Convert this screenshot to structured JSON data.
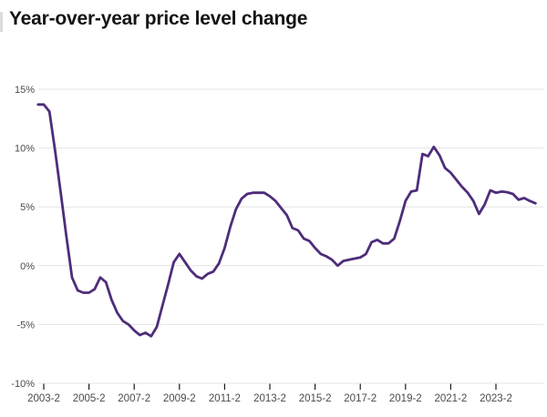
{
  "page": {
    "title": "Year-over-year price level change"
  },
  "chart_data": {
    "type": "line",
    "title": "Year-over-year price level change",
    "unit": "percent",
    "series_name": "Year-over-year price level change",
    "line_color": "#4e2d7a",
    "grid_color": "#e4e4e4",
    "axis_text_color": "#4b4b4b",
    "tick_mark_color": "#1a1a1a",
    "background_color": "#ffffff",
    "ylim": [
      -10,
      15
    ],
    "grid": "horizontal",
    "legend": "none",
    "y_tick_values": [
      15,
      10,
      5,
      0,
      -5,
      -10
    ],
    "y_tick_labels": [
      "15%",
      "10%",
      "5%",
      "0%",
      "-5%",
      "-10%"
    ],
    "x_tick_labels": [
      "2003-2",
      "2005-2",
      "2007-2",
      "2009-2",
      "2011-2",
      "2013-2",
      "2015-2",
      "2017-2",
      "2019-2",
      "2021-2",
      "2023-2"
    ],
    "x_tick_indices": [
      1,
      9,
      17,
      25,
      33,
      41,
      49,
      57,
      65,
      73,
      81
    ],
    "x_labels": [
      "2003-1",
      "2003-2",
      "2003-3",
      "2003-4",
      "2004-1",
      "2004-2",
      "2004-3",
      "2004-4",
      "2005-1",
      "2005-2",
      "2005-3",
      "2005-4",
      "2006-1",
      "2006-2",
      "2006-3",
      "2006-4",
      "2007-1",
      "2007-2",
      "2007-3",
      "2007-4",
      "2008-1",
      "2008-2",
      "2008-3",
      "2008-4",
      "2009-1",
      "2009-2",
      "2009-3",
      "2009-4",
      "2010-1",
      "2010-2",
      "2010-3",
      "2010-4",
      "2011-1",
      "2011-2",
      "2011-3",
      "2011-4",
      "2012-1",
      "2012-2",
      "2012-3",
      "2012-4",
      "2013-1",
      "2013-2",
      "2013-3",
      "2013-4",
      "2014-1",
      "2014-2",
      "2014-3",
      "2014-4",
      "2015-1",
      "2015-2",
      "2015-3",
      "2015-4",
      "2016-1",
      "2016-2",
      "2016-3",
      "2016-4",
      "2017-1",
      "2017-2",
      "2017-3",
      "2017-4",
      "2018-1",
      "2018-2",
      "2018-3",
      "2018-4",
      "2019-1",
      "2019-2",
      "2019-3",
      "2019-4",
      "2020-1",
      "2020-2",
      "2020-3",
      "2020-4",
      "2021-1",
      "2021-2",
      "2021-3",
      "2021-4",
      "2022-1",
      "2022-2",
      "2022-3",
      "2022-4",
      "2023-1",
      "2023-2",
      "2023-3",
      "2023-4",
      "2024-1",
      "2024-2",
      "2024-3",
      "2024-4",
      "2025-1"
    ],
    "values": [
      13.7,
      13.7,
      13.1,
      9.8,
      6.2,
      2.5,
      -1.0,
      -2.1,
      -2.3,
      -2.3,
      -2.0,
      -1.0,
      -1.4,
      -2.9,
      -4.0,
      -4.7,
      -5.0,
      -5.5,
      -5.9,
      -5.7,
      -6.0,
      -5.2,
      -3.4,
      -1.6,
      0.3,
      1.0,
      0.3,
      -0.4,
      -0.9,
      -1.1,
      -0.7,
      -0.5,
      0.2,
      1.5,
      3.3,
      4.8,
      5.7,
      6.1,
      6.2,
      6.2,
      6.2,
      5.9,
      5.5,
      4.9,
      4.3,
      3.2,
      3.0,
      2.3,
      2.1,
      1.5,
      1.0,
      0.8,
      0.5,
      0.0,
      0.4,
      0.5,
      0.6,
      0.7,
      1.0,
      2.0,
      2.2,
      1.9,
      1.9,
      2.3,
      3.8,
      5.5,
      6.3,
      6.4,
      9.5,
      9.3,
      10.1,
      9.4,
      8.3,
      7.9,
      7.3,
      6.7,
      6.2,
      5.5,
      4.4,
      5.2,
      6.4,
      6.2,
      6.3,
      6.25,
      6.1,
      5.6,
      5.75,
      5.5,
      5.3
    ]
  }
}
